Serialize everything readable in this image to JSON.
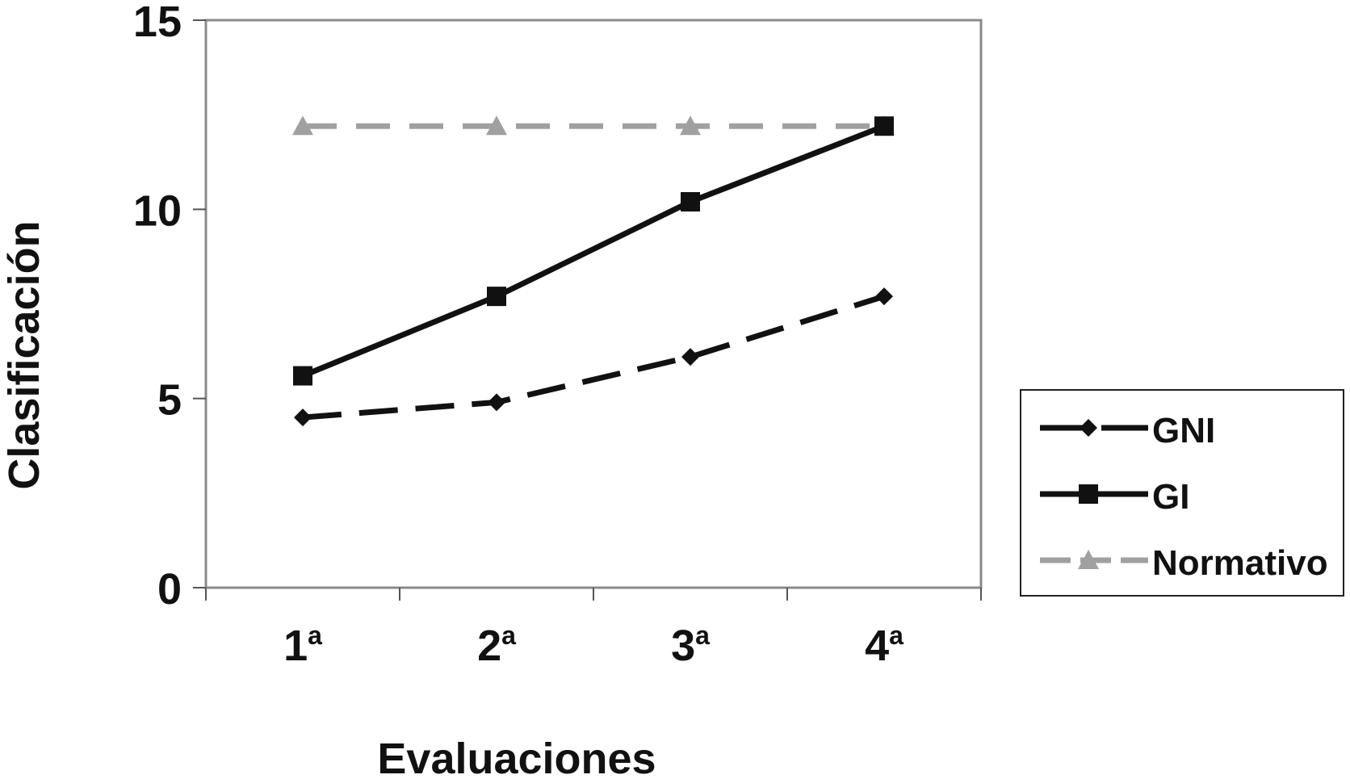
{
  "chart_data": {
    "type": "line",
    "title": "",
    "xlabel": "Evaluaciones",
    "ylabel": "Clasificación",
    "categories": [
      "1",
      "2",
      "3",
      "4"
    ],
    "category_suffix": "a",
    "ylim": [
      0,
      15
    ],
    "yticks": [
      0,
      5,
      10,
      15
    ],
    "grid": false,
    "legend_position": "right",
    "series": [
      {
        "name": "GNI",
        "values": [
          4.5,
          4.9,
          6.1,
          7.7
        ],
        "color": "#111111",
        "line_style": "dashed",
        "marker": "diamond"
      },
      {
        "name": "GI",
        "values": [
          5.6,
          7.7,
          10.2,
          12.2
        ],
        "color": "#111111",
        "line_style": "solid",
        "marker": "square"
      },
      {
        "name": "Normativo",
        "values": [
          12.2,
          12.2,
          12.2,
          12.2
        ],
        "color": "#a0a0a0",
        "line_style": "dashed",
        "marker": "triangle"
      }
    ]
  }
}
